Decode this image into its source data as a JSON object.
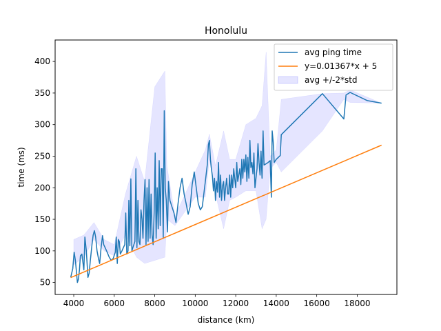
{
  "chart_data": {
    "type": "line",
    "title": "Honolulu",
    "xlabel": "distance (km)",
    "ylabel": "time (ms)",
    "xlim": [
      3080,
      19960
    ],
    "ylim": [
      31,
      434
    ],
    "x_ticks": [
      4000,
      6000,
      8000,
      10000,
      12000,
      14000,
      16000,
      18000
    ],
    "y_ticks": [
      50,
      100,
      150,
      200,
      250,
      300,
      350,
      400
    ],
    "grid": false,
    "legend_position": "top-right",
    "colors": {
      "avg": "#1f77b4",
      "fit": "#ff7f0e",
      "band": "#0000ff"
    },
    "series": [
      {
        "name": "avg ping time",
        "kind": "line",
        "points": [
          [
            3850,
            58
          ],
          [
            3950,
            72
          ],
          [
            4020,
            98
          ],
          [
            4080,
            85
          ],
          [
            4140,
            65
          ],
          [
            4180,
            50
          ],
          [
            4230,
            55
          ],
          [
            4280,
            70
          ],
          [
            4330,
            92
          ],
          [
            4400,
            95
          ],
          [
            4450,
            82
          ],
          [
            4500,
            70
          ],
          [
            4550,
            122
          ],
          [
            4620,
            100
          ],
          [
            4700,
            58
          ],
          [
            4760,
            65
          ],
          [
            4820,
            85
          ],
          [
            4900,
            110
          ],
          [
            4960,
            125
          ],
          [
            5020,
            132
          ],
          [
            5080,
            122
          ],
          [
            5150,
            100
          ],
          [
            5220,
            88
          ],
          [
            5280,
            80
          ],
          [
            5350,
            105
          ],
          [
            5420,
            124
          ],
          [
            5480,
            110
          ],
          [
            5550,
            105
          ],
          [
            5650,
            98
          ],
          [
            5750,
            90
          ],
          [
            5850,
            85
          ],
          [
            5950,
            88
          ],
          [
            6050,
            98
          ],
          [
            6100,
            122
          ],
          [
            6150,
            80
          ],
          [
            6200,
            118
          ],
          [
            6250,
            115
          ],
          [
            6300,
            95
          ],
          [
            6380,
            100
          ],
          [
            6450,
            105
          ],
          [
            6520,
            110
          ],
          [
            6570,
            160
          ],
          [
            6620,
            95
          ],
          [
            6680,
            100
          ],
          [
            6720,
            180
          ],
          [
            6770,
            108
          ],
          [
            6820,
            214
          ],
          [
            6870,
            100
          ],
          [
            6920,
            105
          ],
          [
            6970,
            110
          ],
          [
            7020,
            115
          ],
          [
            7070,
            230
          ],
          [
            7120,
            105
          ],
          [
            7170,
            180
          ],
          [
            7220,
            115
          ],
          [
            7270,
            110
          ],
          [
            7320,
            165
          ],
          [
            7370,
            150
          ],
          [
            7420,
            120
          ],
          [
            7470,
            180
          ],
          [
            7520,
            213
          ],
          [
            7570,
            110
          ],
          [
            7620,
            200
          ],
          [
            7670,
            115
          ],
          [
            7720,
            213
          ],
          [
            7770,
            120
          ],
          [
            7820,
            190
          ],
          [
            7870,
            125
          ],
          [
            7920,
            110
          ],
          [
            7970,
            160
          ],
          [
            8020,
            255
          ],
          [
            8070,
            120
          ],
          [
            8120,
            200
          ],
          [
            8170,
            135
          ],
          [
            8220,
            243
          ],
          [
            8270,
            140
          ],
          [
            8320,
            230
          ],
          [
            8370,
            230
          ],
          [
            8420,
            120
          ],
          [
            8470,
            322
          ],
          [
            8520,
            200
          ],
          [
            8570,
            180
          ],
          [
            8630,
            130
          ],
          [
            8680,
            210
          ],
          [
            8750,
            180
          ],
          [
            8850,
            170
          ],
          [
            8950,
            160
          ],
          [
            9050,
            145
          ],
          [
            9150,
            175
          ],
          [
            9250,
            200
          ],
          [
            9350,
            215
          ],
          [
            9450,
            190
          ],
          [
            9550,
            175
          ],
          [
            9650,
            158
          ],
          [
            9750,
            170
          ],
          [
            9850,
            205
          ],
          [
            9950,
            225
          ],
          [
            10050,
            200
          ],
          [
            10150,
            175
          ],
          [
            10250,
            165
          ],
          [
            10350,
            170
          ],
          [
            10500,
            210
          ],
          [
            10600,
            238
          ],
          [
            10650,
            268
          ],
          [
            10700,
            275
          ],
          [
            10750,
            245
          ],
          [
            10800,
            230
          ],
          [
            10850,
            218
          ],
          [
            10900,
            195
          ],
          [
            10950,
            215
          ],
          [
            11000,
            180
          ],
          [
            11050,
            210
          ],
          [
            11100,
            193
          ],
          [
            11150,
            240
          ],
          [
            11200,
            185
          ],
          [
            11250,
            220
          ],
          [
            11300,
            180
          ],
          [
            11350,
            203
          ],
          [
            11400,
            210
          ],
          [
            11450,
            180
          ],
          [
            11500,
            200
          ],
          [
            11550,
            215
          ],
          [
            11600,
            190
          ],
          [
            11650,
            190
          ],
          [
            11700,
            220
          ],
          [
            11750,
            185
          ],
          [
            11800,
            220
          ],
          [
            11850,
            200
          ],
          [
            11900,
            230
          ],
          [
            11950,
            215
          ],
          [
            12000,
            200
          ],
          [
            12050,
            240
          ],
          [
            12100,
            210
          ],
          [
            12150,
            220
          ],
          [
            12200,
            230
          ],
          [
            12250,
            205
          ],
          [
            12300,
            245
          ],
          [
            12350,
            215
          ],
          [
            12400,
            245
          ],
          [
            12450,
            225
          ],
          [
            12500,
            252
          ],
          [
            12550,
            210
          ],
          [
            12600,
            248
          ],
          [
            12650,
            215
          ],
          [
            12700,
            275
          ],
          [
            12750,
            232
          ],
          [
            12800,
            240
          ],
          [
            12850,
            222
          ],
          [
            12900,
            255
          ],
          [
            12950,
            200
          ],
          [
            13000,
            215
          ],
          [
            13050,
            230
          ],
          [
            13100,
            270
          ],
          [
            13150,
            240
          ],
          [
            13200,
            220
          ],
          [
            13250,
            258
          ],
          [
            13300,
            215
          ],
          [
            13350,
            290
          ],
          [
            13400,
            236
          ],
          [
            13500,
            238
          ],
          [
            13600,
            240
          ],
          [
            13700,
            243
          ],
          [
            13760,
            185
          ],
          [
            13800,
            290
          ],
          [
            13850,
            272
          ],
          [
            13900,
            240
          ],
          [
            14000,
            245
          ],
          [
            14100,
            248
          ],
          [
            14200,
            251
          ],
          [
            14250,
            284
          ],
          [
            16280,
            349
          ],
          [
            17340,
            309
          ],
          [
            17450,
            347
          ],
          [
            17650,
            351
          ],
          [
            18500,
            338
          ],
          [
            19200,
            334
          ]
        ]
      },
      {
        "name": "y=0.01367*x + 5",
        "kind": "line",
        "points": [
          [
            3850,
            57.6
          ],
          [
            19200,
            267.5
          ]
        ]
      },
      {
        "name": "avg +/-2*std",
        "kind": "band",
        "band": [
          [
            4000,
            78,
            118
          ],
          [
            4500,
            90,
            125
          ],
          [
            5000,
            118,
            145
          ],
          [
            5500,
            100,
            118
          ],
          [
            6000,
            92,
            110
          ],
          [
            6550,
            125,
            190
          ],
          [
            7100,
            90,
            250
          ],
          [
            7500,
            80,
            210
          ],
          [
            8000,
            85,
            360
          ],
          [
            8500,
            90,
            385
          ],
          [
            8600,
            150,
            235
          ],
          [
            9000,
            140,
            155
          ],
          [
            10000,
            185,
            225
          ],
          [
            10500,
            185,
            260
          ],
          [
            10700,
            245,
            285
          ],
          [
            11000,
            190,
            235
          ],
          [
            11400,
            135,
            290
          ],
          [
            11700,
            180,
            245
          ],
          [
            12000,
            185,
            245
          ],
          [
            12500,
            195,
            300
          ],
          [
            13000,
            195,
            310
          ],
          [
            13300,
            135,
            330
          ],
          [
            13500,
            150,
            415
          ],
          [
            13700,
            230,
            250
          ],
          [
            14000,
            240,
            260
          ],
          [
            14250,
            225,
            340
          ],
          [
            16280,
            290,
            349
          ],
          [
            17340,
            340,
            350
          ],
          [
            17650,
            335,
            355
          ],
          [
            19200,
            334,
            334
          ]
        ]
      }
    ],
    "legend": [
      {
        "label": "avg ping time",
        "swatch": "line",
        "color": "#1f77b4"
      },
      {
        "label": "y=0.01367*x + 5",
        "swatch": "line",
        "color": "#ff7f0e"
      },
      {
        "label": "avg +/-2*std",
        "swatch": "patch",
        "color": "#0000ff"
      }
    ]
  }
}
